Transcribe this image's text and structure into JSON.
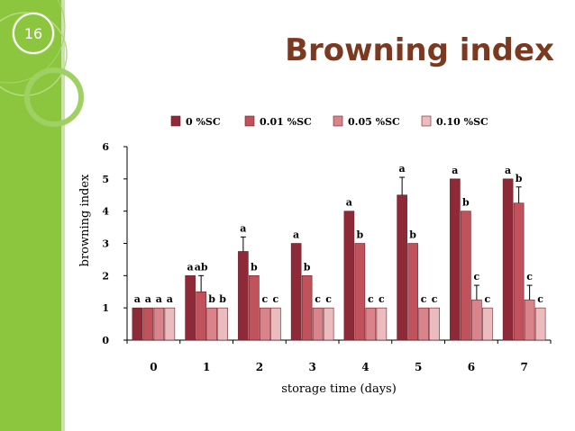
{
  "slide": {
    "number": "16",
    "title": "Browning index"
  },
  "chart_data": {
    "type": "bar",
    "xlabel": "storage time (days)",
    "ylabel": "browning index",
    "ylim": [
      0,
      6
    ],
    "yticks": [
      0,
      1,
      2,
      3,
      4,
      5,
      6
    ],
    "categories": [
      "0",
      "1",
      "2",
      "3",
      "4",
      "5",
      "6",
      "7"
    ],
    "legend_position": "top",
    "series": [
      {
        "name": "0 %SC",
        "color": "#8e2a37",
        "values": [
          1,
          2,
          2.75,
          3,
          4,
          4.5,
          5,
          5
        ],
        "errors": [
          0,
          0,
          0.45,
          0,
          0,
          0.55,
          0,
          0
        ],
        "labels": [
          "a",
          "a",
          "a",
          "a",
          "a",
          "a",
          "a",
          "a"
        ]
      },
      {
        "name": "0.01 %SC",
        "color": "#c0525c",
        "values": [
          1,
          1.5,
          2,
          2,
          3,
          3,
          4,
          4.25
        ],
        "errors": [
          0,
          0.5,
          0,
          0,
          0,
          0,
          0,
          0.5
        ],
        "labels": [
          "a",
          "ab",
          "b",
          "b",
          "b",
          "b",
          "b",
          "b"
        ]
      },
      {
        "name": "0.05 %SC",
        "color": "#d9838b",
        "values": [
          1,
          1,
          1,
          1,
          1,
          1,
          1.25,
          1.25
        ],
        "errors": [
          0,
          0,
          0,
          0,
          0,
          0,
          0.45,
          0.45
        ],
        "labels": [
          "a",
          "b",
          "c",
          "c",
          "c",
          "c",
          "c",
          "c"
        ]
      },
      {
        "name": "0.10 %SC",
        "color": "#ebbcbe",
        "values": [
          1,
          1,
          1,
          1,
          1,
          1,
          1,
          1
        ],
        "errors": [
          0,
          0,
          0,
          0,
          0,
          0,
          0,
          0
        ],
        "labels": [
          "a",
          "b",
          "c",
          "c",
          "c",
          "c",
          "c",
          "c"
        ]
      }
    ]
  }
}
